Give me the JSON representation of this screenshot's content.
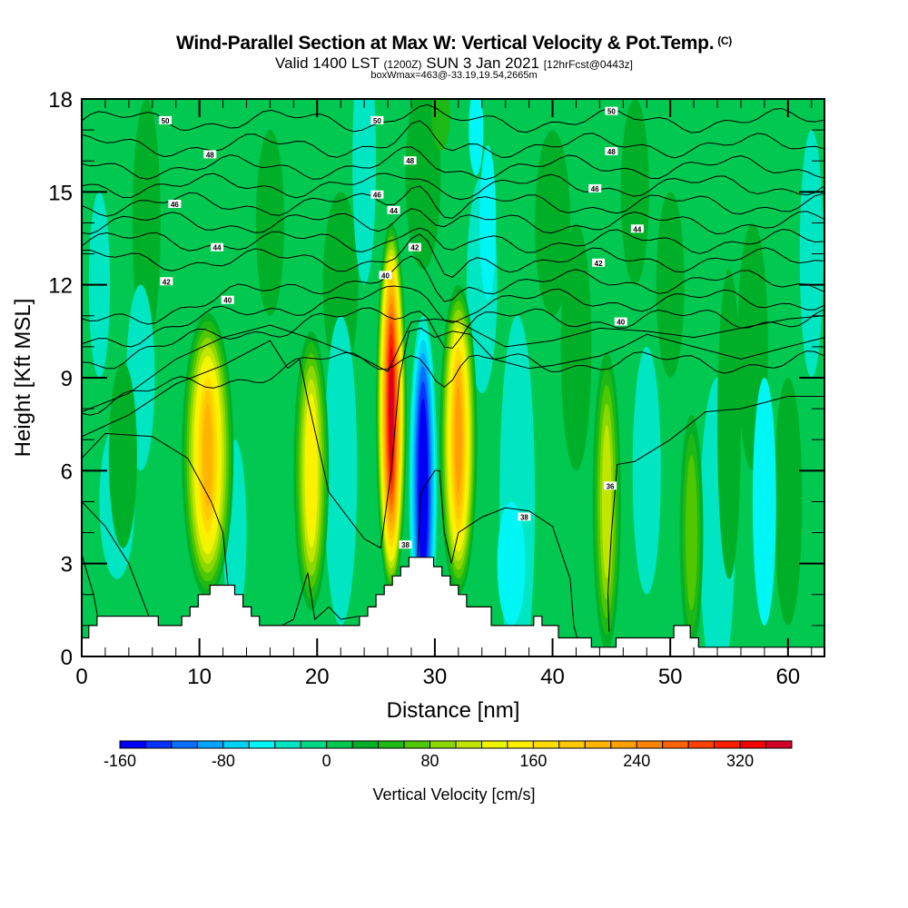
{
  "header": {
    "title": "Wind-Parallel Section at Max W: Vertical Velocity & Pot.Temp.",
    "copyright": "(C)",
    "valid_prefix": "Valid 1400 LST",
    "valid_utc": "(1200Z)",
    "valid_date": "SUN 3 Jan 2021",
    "forecast": "[12hrFcst@0443z]",
    "boxwmax": "boxWmax=463@-33.19,19.54,2665m"
  },
  "chart_data": {
    "type": "heatmap",
    "title": "Wind-Parallel Section at Max W: Vertical Velocity & Pot.Temp.",
    "xlabel": "Distance [nm]",
    "ylabel": "Height [Kft MSL]",
    "xlim": [
      0,
      63.1
    ],
    "ylim": [
      0,
      18
    ],
    "x_ticks": [
      "0",
      "10",
      "20",
      "30",
      "40",
      "50",
      "60"
    ],
    "x_tick_values": [
      0,
      10,
      20,
      30,
      40,
      50,
      60
    ],
    "x_minor_step": 2,
    "y_ticks": [
      "0",
      "3",
      "6",
      "9",
      "12",
      "15",
      "18"
    ],
    "y_tick_values": [
      0,
      3,
      6,
      9,
      12,
      15,
      18
    ],
    "y_minor_step": 1,
    "colorbar": {
      "title": "Vertical Velocity [cm/s]",
      "min": -160,
      "max": 360,
      "step": 20,
      "tick_labels": [
        "-160",
        "-80",
        "0",
        "80",
        "160",
        "240",
        "320"
      ],
      "tick_values": [
        -160,
        -80,
        0,
        80,
        160,
        240,
        320
      ],
      "colors": [
        "#0000f5",
        "#0a32ff",
        "#0a6eff",
        "#00a5ff",
        "#00d2f5",
        "#00f5f5",
        "#00e6c3",
        "#00d787",
        "#00c850",
        "#00af28",
        "#1eb914",
        "#50c800",
        "#8cd700",
        "#c3e600",
        "#f0f500",
        "#fff000",
        "#ffdc00",
        "#ffc800",
        "#ffb400",
        "#ffa000",
        "#ff8200",
        "#ff6400",
        "#ff4100",
        "#ff1e00",
        "#f50000",
        "#d20028"
      ]
    },
    "background_value_cms": 0,
    "vertical_velocity_cells": [
      {
        "name": "updraft-10nm",
        "x_nm": 10.7,
        "z_kft": 6.5,
        "peak_cms": 210
      },
      {
        "name": "updraft-19nm",
        "x_nm": 19.5,
        "z_kft": 6.0,
        "peak_cms": 150
      },
      {
        "name": "updraft-26nm",
        "x_nm": 26.3,
        "z_kft": 8.0,
        "peak_cms": 350
      },
      {
        "name": "downdraft-29nm",
        "x_nm": 29.0,
        "z_kft": 5.5,
        "peak_cms": -160
      },
      {
        "name": "updraft-32nm",
        "x_nm": 32.0,
        "z_kft": 7.0,
        "peak_cms": 220
      },
      {
        "name": "updraft-44nm",
        "x_nm": 44.6,
        "z_kft": 5.0,
        "peak_cms": 100
      },
      {
        "name": "updraft-52nm",
        "x_nm": 51.8,
        "z_kft": 4.0,
        "peak_cms": 60
      }
    ],
    "potential_temperature_contours": {
      "units": "C",
      "levels": [
        36,
        38,
        40,
        41,
        42,
        43,
        44,
        45,
        46,
        47,
        48,
        49,
        50
      ],
      "labels": [
        {
          "text": "50",
          "x_nm": 7.1,
          "z_kft": 17.3
        },
        {
          "text": "48",
          "x_nm": 10.9,
          "z_kft": 16.2
        },
        {
          "text": "46",
          "x_nm": 7.9,
          "z_kft": 14.6
        },
        {
          "text": "44",
          "x_nm": 11.5,
          "z_kft": 13.2
        },
        {
          "text": "42",
          "x_nm": 7.2,
          "z_kft": 12.1
        },
        {
          "text": "40",
          "x_nm": 12.4,
          "z_kft": 11.5
        },
        {
          "text": "50",
          "x_nm": 25.1,
          "z_kft": 17.3
        },
        {
          "text": "48",
          "x_nm": 27.9,
          "z_kft": 16.0
        },
        {
          "text": "46",
          "x_nm": 25.1,
          "z_kft": 14.9
        },
        {
          "text": "44",
          "x_nm": 26.5,
          "z_kft": 14.4
        },
        {
          "text": "42",
          "x_nm": 28.3,
          "z_kft": 13.2
        },
        {
          "text": "40",
          "x_nm": 25.8,
          "z_kft": 12.3
        },
        {
          "text": "38",
          "x_nm": 27.5,
          "z_kft": 3.6
        },
        {
          "text": "50",
          "x_nm": 45.0,
          "z_kft": 17.6
        },
        {
          "text": "48",
          "x_nm": 45.0,
          "z_kft": 16.3
        },
        {
          "text": "46",
          "x_nm": 43.6,
          "z_kft": 15.1
        },
        {
          "text": "44",
          "x_nm": 47.2,
          "z_kft": 13.8
        },
        {
          "text": "42",
          "x_nm": 43.9,
          "z_kft": 12.7
        },
        {
          "text": "40",
          "x_nm": 45.8,
          "z_kft": 10.8
        },
        {
          "text": "38",
          "x_nm": 37.6,
          "z_kft": 4.5
        },
        {
          "text": "36",
          "x_nm": 44.9,
          "z_kft": 5.5
        }
      ]
    },
    "terrain_kft": {
      "x_nm": [
        0,
        0.6,
        0.6,
        1.3,
        1.3,
        6.5,
        6.5,
        8.5,
        8.5,
        9.2,
        9.2,
        9.9,
        9.9,
        10.9,
        10.9,
        13.0,
        13.0,
        13.7,
        13.7,
        14.4,
        14.4,
        15.1,
        15.1,
        19.0,
        19.0,
        23.6,
        23.6,
        24.3,
        24.3,
        25.0,
        25.0,
        25.7,
        25.7,
        26.4,
        26.4,
        27.1,
        27.1,
        27.8,
        27.8,
        28.5,
        28.5,
        29.9,
        29.9,
        30.6,
        30.6,
        31.3,
        31.3,
        32.0,
        32.0,
        32.7,
        32.7,
        34.8,
        34.8,
        38.4,
        38.4,
        39.1,
        39.1,
        40.5,
        40.5,
        43.3,
        43.3,
        45.4,
        45.4,
        50.3,
        50.3,
        51.7,
        51.7,
        52.4,
        52.4,
        63.1
      ],
      "z_kft": [
        0.6,
        0.6,
        1.0,
        1.0,
        1.3,
        1.3,
        1.0,
        1.0,
        1.3,
        1.3,
        1.6,
        1.6,
        2.0,
        2.0,
        2.3,
        2.3,
        2.0,
        2.0,
        1.6,
        1.6,
        1.3,
        1.3,
        1.0,
        1.0,
        1.0,
        1.0,
        1.3,
        1.3,
        1.6,
        1.6,
        2.0,
        2.0,
        2.3,
        2.3,
        2.6,
        2.6,
        2.9,
        2.9,
        3.2,
        3.2,
        3.2,
        3.2,
        2.9,
        2.9,
        2.6,
        2.6,
        2.3,
        2.3,
        2.0,
        2.0,
        1.6,
        1.6,
        1.0,
        1.0,
        1.3,
        1.3,
        1.0,
        1.0,
        0.6,
        0.6,
        0.3,
        0.3,
        0.6,
        0.6,
        1.0,
        1.0,
        0.6,
        0.6,
        0.3,
        0.3
      ]
    }
  }
}
